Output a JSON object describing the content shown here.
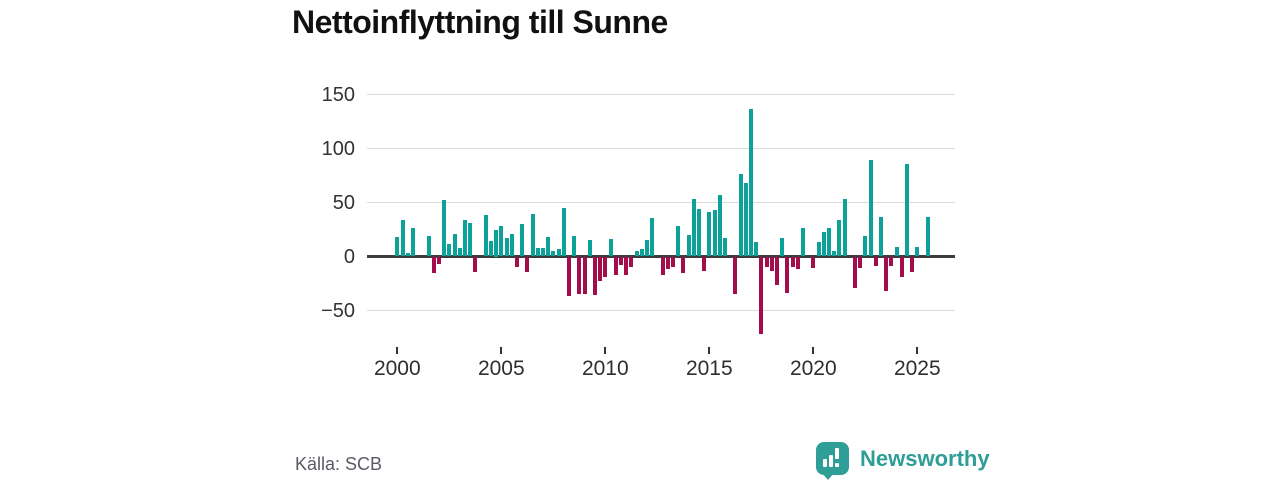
{
  "title": "Nettoinflyttning till Sunne",
  "source": "Källa: SCB",
  "brand": {
    "name": "Newsworthy"
  },
  "chart_data": {
    "type": "bar",
    "title": "Nettoinflyttning till Sunne",
    "frequency": "quarterly",
    "x_start": "2000-Q1",
    "x_end": "2025-Q3",
    "ylim": [
      -75,
      160
    ],
    "grid": true,
    "y_ticks": [
      {
        "value": 150,
        "label": "150"
      },
      {
        "value": 100,
        "label": "100"
      },
      {
        "value": 50,
        "label": "50"
      },
      {
        "value": 0,
        "label": "0"
      },
      {
        "value": -50,
        "label": "−50"
      }
    ],
    "x_ticks": [
      {
        "year": 2000,
        "label": "2000"
      },
      {
        "year": 2005,
        "label": "2005"
      },
      {
        "year": 2010,
        "label": "2010"
      },
      {
        "year": 2015,
        "label": "2015"
      },
      {
        "year": 2020,
        "label": "2020"
      },
      {
        "year": 2025,
        "label": "2025"
      }
    ],
    "colors": {
      "positive": "#0ca199",
      "negative": "#a30d4b"
    },
    "series": [
      {
        "name": "Nettoinflyttning",
        "values": [
          18,
          34,
          3,
          26,
          0,
          0,
          19,
          -15,
          -7,
          52,
          12,
          21,
          8,
          34,
          31,
          -14,
          0,
          38,
          14,
          25,
          28,
          17,
          21,
          -10,
          30,
          -14,
          39,
          8,
          8,
          18,
          5,
          7,
          45,
          -37,
          19,
          -35,
          -35,
          15,
          -36,
          -23,
          -19,
          16,
          -17,
          -8,
          -17,
          -10,
          5,
          7,
          15,
          36,
          0,
          -17,
          -12,
          -10,
          28,
          -15,
          20,
          53,
          44,
          -13,
          41,
          43,
          57,
          17,
          0,
          -35,
          76,
          68,
          137,
          13,
          -72,
          -10,
          -13,
          -26,
          17,
          -34,
          -10,
          -12,
          26,
          0,
          -11,
          13,
          23,
          26,
          5,
          34,
          53,
          0,
          -29,
          -11,
          19,
          89,
          -9,
          37,
          -32,
          -9,
          9,
          -19,
          86,
          -14,
          9,
          0,
          37
        ]
      }
    ]
  }
}
